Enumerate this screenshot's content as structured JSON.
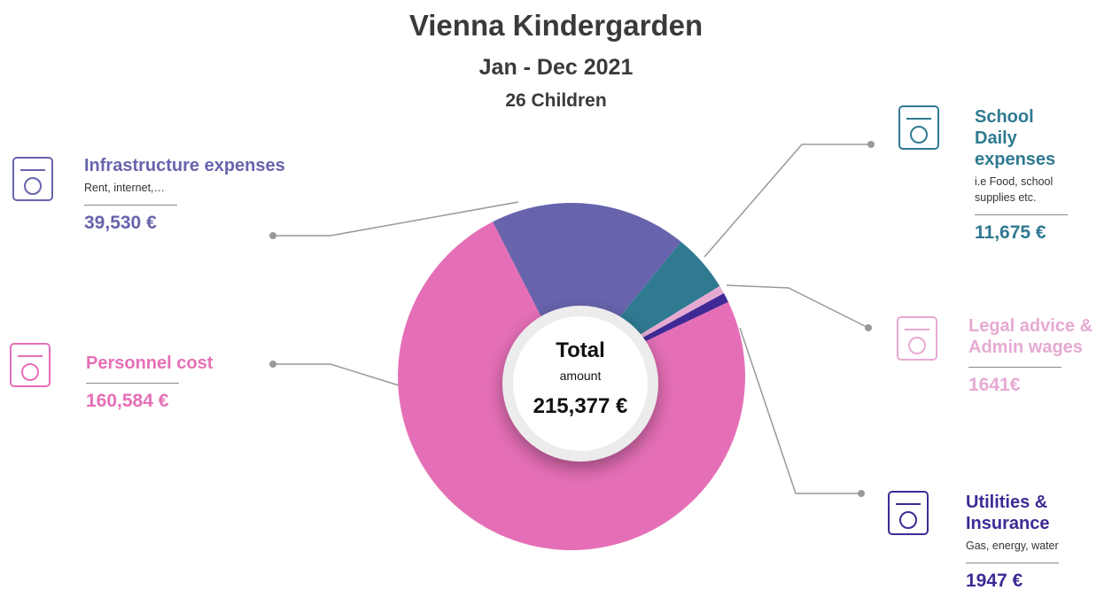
{
  "chart_data": {
    "type": "pie",
    "title": "Vienna Kindergarden",
    "subtitle": "Jan - Dec 2021",
    "note": "26 Children",
    "categories": [
      "Infrastructure expenses",
      "School Daily expenses",
      "Legal advice & Admin wages",
      "Utilities & Insurance",
      "Personnel cost"
    ],
    "values": [
      39530,
      11675,
      1641,
      1947,
      160584
    ],
    "value_labels": [
      "39,530 €",
      "11,675 €",
      "1641€",
      "1947 €",
      "160,584 €"
    ],
    "descriptions": [
      "Rent, internet,…",
      "i.e Food, school supplies etc.",
      null,
      "Gas, energy, water",
      null
    ],
    "colors": [
      "#6764ad",
      "#2f7a91",
      "#e6aad2",
      "#3f2a95",
      "#e56fb6"
    ],
    "center": {
      "title": "Total",
      "subtitle": "amount",
      "total": {
        "value": 215377,
        "label": "215,377 €"
      }
    }
  }
}
